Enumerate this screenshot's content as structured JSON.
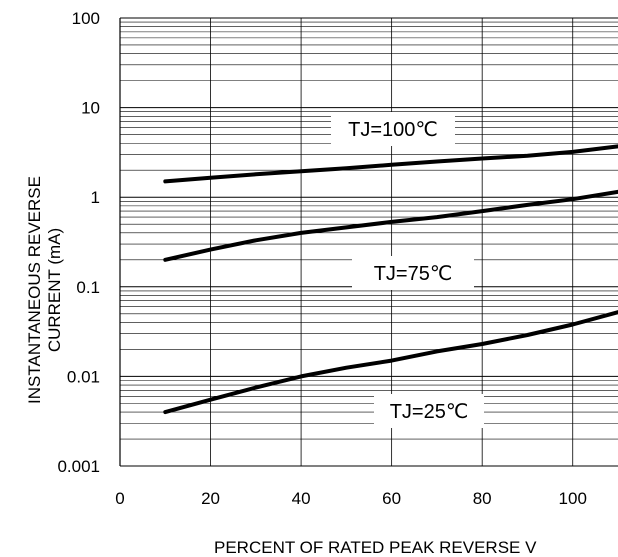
{
  "chart_data": {
    "type": "line",
    "xlabel": "PERCENT OF RATED PEAK REVERSE V",
    "ylabel_lines": [
      "INSTANTANEOUS REVERSE",
      "CURRENT (mA)"
    ],
    "y_scale": "log",
    "xlim": [
      0,
      110
    ],
    "ylim": [
      0.001,
      100
    ],
    "x_ticks": [
      {
        "value": 0,
        "label": "0"
      },
      {
        "value": 20,
        "label": "20"
      },
      {
        "value": 40,
        "label": "40"
      },
      {
        "value": 60,
        "label": "60"
      },
      {
        "value": 80,
        "label": "80"
      },
      {
        "value": 100,
        "label": "100"
      }
    ],
    "y_ticks": [
      {
        "value": 0.001,
        "label": "0.001"
      },
      {
        "value": 0.01,
        "label": "0.01"
      },
      {
        "value": 0.1,
        "label": "0.1"
      },
      {
        "value": 1,
        "label": "1"
      },
      {
        "value": 10,
        "label": "10"
      },
      {
        "value": 100,
        "label": "100"
      }
    ],
    "grid": true,
    "series": [
      {
        "name": "TJ=100℃",
        "x": [
          10,
          20,
          30,
          40,
          50,
          60,
          70,
          80,
          90,
          100,
          110
        ],
        "y": [
          1.5,
          1.65,
          1.8,
          1.95,
          2.1,
          2.3,
          2.5,
          2.7,
          2.9,
          3.2,
          3.7
        ]
      },
      {
        "name": "TJ=75℃",
        "x": [
          10,
          20,
          30,
          40,
          50,
          60,
          70,
          80,
          90,
          100,
          110
        ],
        "y": [
          0.2,
          0.26,
          0.33,
          0.4,
          0.46,
          0.53,
          0.6,
          0.7,
          0.82,
          0.95,
          1.15
        ]
      },
      {
        "name": "TJ=25℃",
        "x": [
          10,
          20,
          30,
          40,
          50,
          60,
          70,
          80,
          90,
          100,
          110
        ],
        "y": [
          0.004,
          0.0055,
          0.0075,
          0.01,
          0.0125,
          0.015,
          0.019,
          0.023,
          0.029,
          0.038,
          0.052
        ]
      }
    ],
    "annotations": [
      "TJ=100℃",
      "TJ=75℃",
      "TJ=25℃"
    ],
    "line_color": "#000000",
    "grid_color": "#000000"
  }
}
